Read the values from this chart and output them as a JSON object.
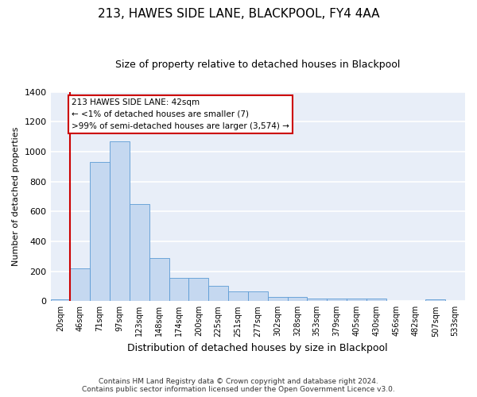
{
  "title": "213, HAWES SIDE LANE, BLACKPOOL, FY4 4AA",
  "subtitle": "Size of property relative to detached houses in Blackpool",
  "xlabel": "Distribution of detached houses by size in Blackpool",
  "ylabel": "Number of detached properties",
  "bar_color": "#c5d8f0",
  "bar_edge_color": "#5b9bd5",
  "background_color": "#e8eef8",
  "grid_color": "#ffffff",
  "fig_background": "#ffffff",
  "categories": [
    "20sqm",
    "46sqm",
    "71sqm",
    "97sqm",
    "123sqm",
    "148sqm",
    "174sqm",
    "200sqm",
    "225sqm",
    "251sqm",
    "277sqm",
    "302sqm",
    "328sqm",
    "353sqm",
    "379sqm",
    "405sqm",
    "430sqm",
    "456sqm",
    "482sqm",
    "507sqm",
    "533sqm"
  ],
  "values": [
    10,
    220,
    930,
    1070,
    650,
    290,
    155,
    155,
    100,
    65,
    65,
    30,
    30,
    20,
    20,
    15,
    15,
    0,
    0,
    10,
    0
  ],
  "ylim": [
    0,
    1400
  ],
  "yticks": [
    0,
    200,
    400,
    600,
    800,
    1000,
    1200,
    1400
  ],
  "annotation_text": "213 HAWES SIDE LANE: 42sqm\n← <1% of detached houses are smaller (7)\n>99% of semi-detached houses are larger (3,574) →",
  "annotation_box_color": "#ffffff",
  "annotation_box_edge": "#cc0000",
  "redline_x": 0.5,
  "footer_line1": "Contains HM Land Registry data © Crown copyright and database right 2024.",
  "footer_line2": "Contains public sector information licensed under the Open Government Licence v3.0.",
  "title_fontsize": 11,
  "subtitle_fontsize": 9,
  "xlabel_fontsize": 9,
  "ylabel_fontsize": 8,
  "tick_fontsize": 7,
  "annotation_fontsize": 7.5,
  "footer_fontsize": 6.5
}
